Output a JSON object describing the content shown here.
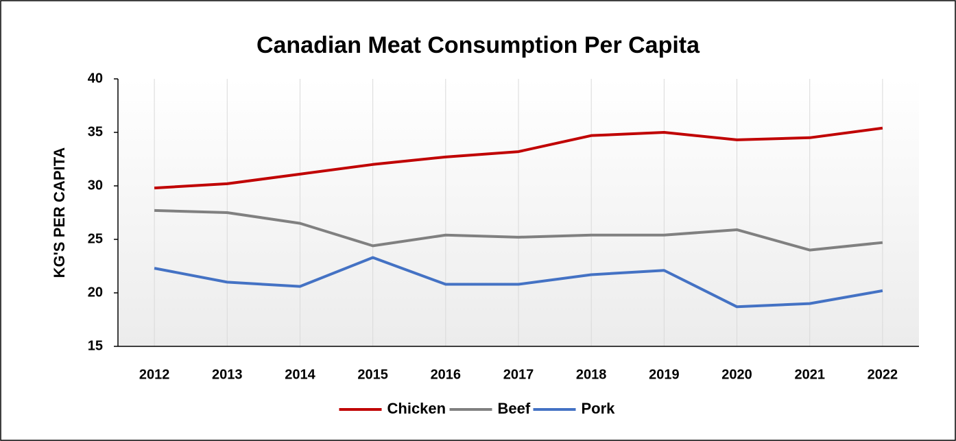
{
  "chart_data": {
    "type": "line",
    "title": "Canadian Meat Consumption Per Capita",
    "y_label": "KG'S PER CAPITA",
    "categories": [
      "2012",
      "2013",
      "2014",
      "2015",
      "2016",
      "2017",
      "2018",
      "2019",
      "2020",
      "2021",
      "2022"
    ],
    "series": [
      {
        "name": "Chicken",
        "color": "#c00000",
        "values": [
          29.8,
          30.2,
          31.1,
          32.0,
          32.7,
          33.2,
          34.7,
          35.0,
          34.3,
          34.5,
          35.4
        ]
      },
      {
        "name": "Beef",
        "color": "#808080",
        "values": [
          27.7,
          27.5,
          26.5,
          24.4,
          25.4,
          25.2,
          25.4,
          25.4,
          25.9,
          24.0,
          24.7
        ]
      },
      {
        "name": "Pork",
        "color": "#4472c4",
        "values": [
          22.3,
          21.0,
          20.6,
          23.3,
          20.8,
          20.8,
          21.7,
          22.1,
          18.7,
          19.0,
          20.2
        ]
      }
    ],
    "ylim": [
      15,
      40
    ],
    "yticks": [
      15,
      20,
      25,
      30,
      35,
      40
    ],
    "grid": "x",
    "legend": "bottom"
  }
}
